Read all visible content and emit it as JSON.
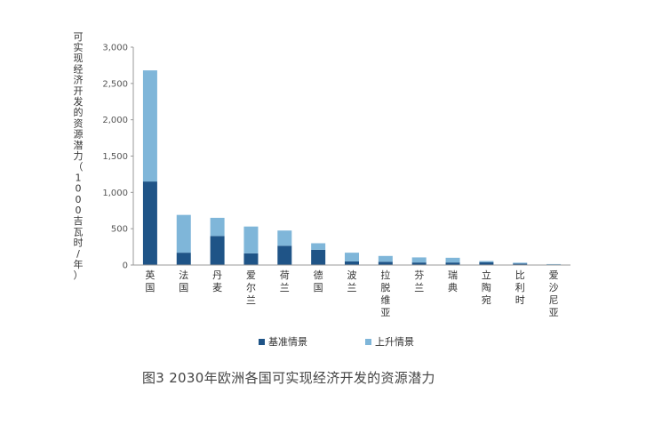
{
  "figure_caption": "图3 2030年欧洲各国可实现经济开发的资源潜力",
  "colors": {
    "baseline": "#1f5487",
    "increase": "#7fb6d9",
    "axis": "#999999",
    "grid": "#e3e3e3"
  },
  "chart_data": {
    "type": "bar",
    "stacked": true,
    "title": "",
    "xlabel": "",
    "ylabel": "可实现经济开发的资源潜力（1000吉瓦时/年）",
    "ylim": [
      0,
      3000
    ],
    "yticks": [
      "0",
      "500",
      "1,000",
      "1,500",
      "2,000",
      "2,500",
      "3,000"
    ],
    "categories": [
      "英国",
      "法国",
      "丹麦",
      "爱尔兰",
      "荷兰",
      "德国",
      "波兰",
      "拉脱维亚",
      "芬兰",
      "瑞典",
      "立陶宛",
      "比利时",
      "爱沙尼亚"
    ],
    "series": [
      {
        "name": "基准情景",
        "values": [
          1150,
          170,
          400,
          160,
          265,
          210,
          50,
          45,
          35,
          35,
          40,
          20,
          5
        ]
      },
      {
        "name": "上升情景",
        "values": [
          1530,
          520,
          250,
          370,
          210,
          90,
          120,
          80,
          70,
          65,
          15,
          12,
          8
        ]
      }
    ],
    "legend": "bottom",
    "grid": false
  }
}
